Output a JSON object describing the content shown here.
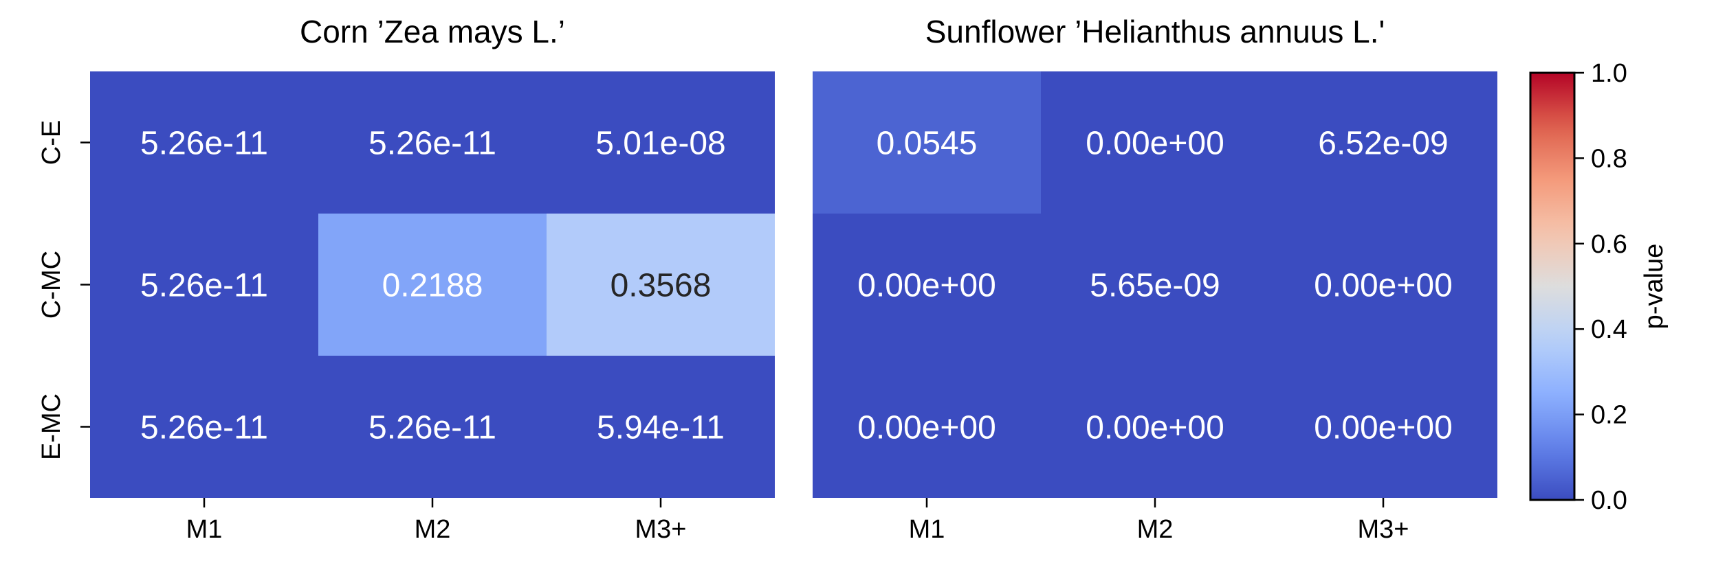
{
  "colorbar": {
    "label": "p-value",
    "ticks": [
      "0.0",
      "0.2",
      "0.4",
      "0.6",
      "0.8",
      "1.0"
    ],
    "range": [
      0,
      1
    ],
    "colormap": "coolwarm"
  },
  "chart_data": [
    {
      "type": "heatmap",
      "title": "Corn ’Zea mays L.’",
      "columns": [
        "M1",
        "M2",
        "M3+"
      ],
      "rows": [
        "C-E",
        "C-MC",
        "E-MC"
      ],
      "values": [
        [
          5.26e-11,
          5.26e-11,
          5.01e-08
        ],
        [
          5.26e-11,
          0.2188,
          0.3568
        ],
        [
          5.26e-11,
          5.26e-11,
          5.94e-11
        ]
      ],
      "annotations": [
        [
          "5.26e-11",
          "5.26e-11",
          "5.01e-08"
        ],
        [
          "5.26e-11",
          "0.2188",
          "0.3568"
        ],
        [
          "5.26e-11",
          "5.26e-11",
          "5.94e-11"
        ]
      ]
    },
    {
      "type": "heatmap",
      "title": "Sunflower ’Helianthus annuus L.'",
      "columns": [
        "M1",
        "M2",
        "M3+"
      ],
      "rows": [
        "C-E",
        "C-MC",
        "E-MC"
      ],
      "values": [
        [
          0.0545,
          0.0,
          6.52e-09
        ],
        [
          0.0,
          5.65e-09,
          0.0
        ],
        [
          0.0,
          0.0,
          0.0
        ]
      ],
      "annotations": [
        [
          "0.0545",
          "0.00e+00",
          "6.52e-09"
        ],
        [
          "0.00e+00",
          "5.65e-09",
          "0.00e+00"
        ],
        [
          "0.00e+00",
          "0.00e+00",
          "0.00e+00"
        ]
      ]
    }
  ]
}
